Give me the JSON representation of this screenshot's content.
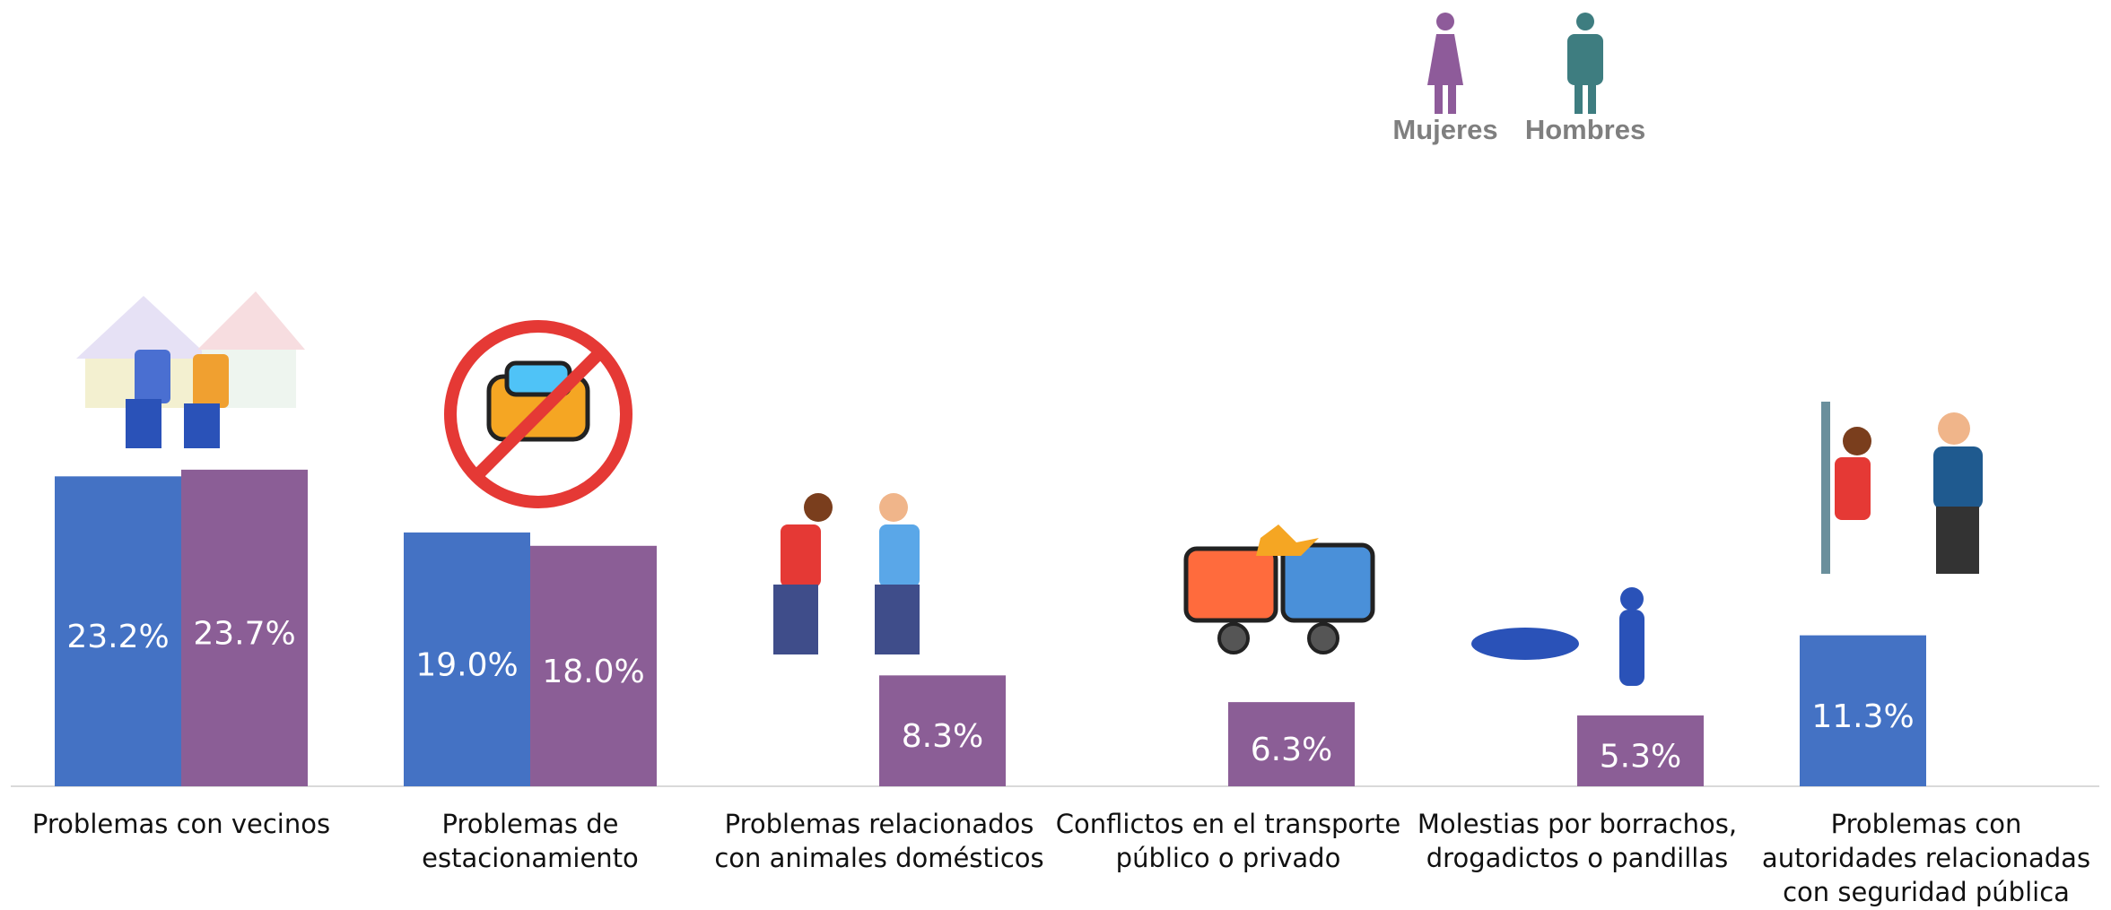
{
  "chart_data": {
    "type": "bar",
    "categories": [
      [
        "Problemas con vecinos"
      ],
      [
        "Problemas de",
        "estacionamiento"
      ],
      [
        "Problemas relacionados",
        "con animales domésticos"
      ],
      [
        "Conflictos en el transporte",
        "público o privado"
      ],
      [
        "Molestias por borrachos,",
        "drogadictos o pandillas"
      ],
      [
        "Problemas con",
        "autoridades relacionadas",
        "con seguridad pública"
      ]
    ],
    "series": [
      {
        "name": "Hombres",
        "color": "#4472c4",
        "icon_color": "#3e7d80",
        "values": [
          23.2,
          19.0,
          null,
          null,
          null,
          11.3
        ],
        "value_labels": [
          "23.2%",
          "19.0%",
          null,
          null,
          null,
          "11.3%"
        ]
      },
      {
        "name": "Mujeres",
        "color": "#8b5e96",
        "icon_color": "#8e5b9a",
        "values": [
          23.7,
          18.0,
          8.3,
          6.3,
          5.3,
          null
        ],
        "value_labels": [
          "23.7%",
          "18.0%",
          "8.3%",
          "6.3%",
          "5.3%",
          null
        ]
      }
    ]
  }
}
